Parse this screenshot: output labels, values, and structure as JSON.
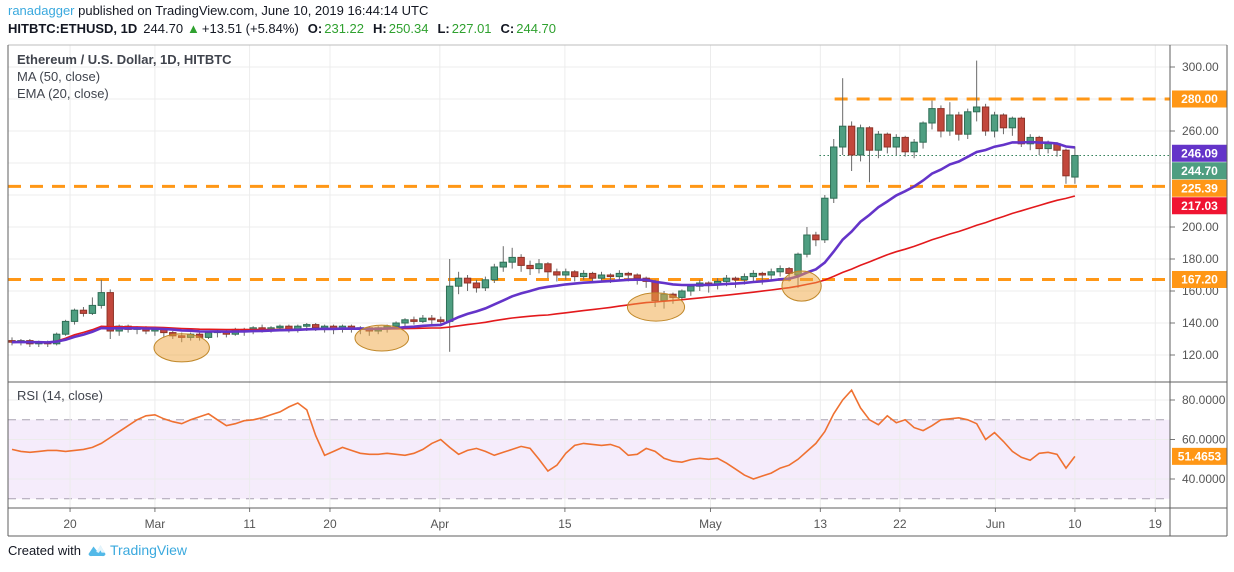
{
  "header": {
    "author": "ranadagger",
    "published": " published on TradingView.com, June 10, 2019 16:44:14 UTC",
    "symbol": "HITBTC:ETHUSD, 1D",
    "last_price": "244.70",
    "up_arrow": "▲",
    "change": "+13.51 (+5.84%)",
    "o_label": "O:",
    "o_value": "231.22",
    "h_label": "H:",
    "h_value": "250.34",
    "l_label": "L:",
    "l_value": "227.01",
    "c_label": "C:",
    "c_value": "244.70"
  },
  "legend": {
    "title": "Ethereum / U.S. Dollar, 1D, HITBTC",
    "ma": "MA (50, close)",
    "ema": "EMA (20, close)"
  },
  "rsi_label": "RSI (14, close)",
  "footer": {
    "created_with": "Created with",
    "brand": "TradingView"
  },
  "colors": {
    "up": "#4e9e81",
    "up_border": "#2e6e55",
    "down": "#c2473c",
    "down_border": "#8e3327",
    "wick": "#6a6a6a",
    "ema": "#6434c9",
    "ma": "#e3191c",
    "levels": "#ff9716",
    "price_line": "#2e7d57",
    "rsi": "#ef7131",
    "rsi_band": "#f5ecfb",
    "rsi_band_edge": "#a9a2b2",
    "badge_purple": "#6434c9",
    "badge_green": "#4e9e81",
    "badge_orange": "#ff9716",
    "badge_red": "#f01432",
    "grid": "#ececec",
    "frame": "#5f5f5f",
    "frame_light": "#bdbdbd",
    "axis_text": "#555555",
    "ellipse_fill": "#f0a63f",
    "ellipse_stroke": "#c0882a"
  },
  "chart_data": {
    "type": "candlestick",
    "title": "Ethereum / U.S. Dollar, 1D, HITBTC",
    "overlays": [
      {
        "name": "MA (50, close)",
        "type": "sma",
        "period": 50
      },
      {
        "name": "EMA (20, close)",
        "type": "ema",
        "period": 20
      }
    ],
    "candles": [
      [
        129,
        131,
        126,
        128
      ],
      [
        128,
        130,
        126,
        129
      ],
      [
        129,
        130,
        125,
        127
      ],
      [
        127,
        129,
        125,
        128
      ],
      [
        128,
        129,
        125,
        127
      ],
      [
        127,
        134,
        126,
        133
      ],
      [
        133,
        142,
        132,
        141
      ],
      [
        141,
        149,
        139,
        148
      ],
      [
        148,
        150,
        144,
        146
      ],
      [
        146,
        156,
        145,
        151
      ],
      [
        151,
        167,
        149,
        159
      ],
      [
        159,
        161,
        130,
        135
      ],
      [
        135,
        139,
        132,
        138
      ],
      [
        138,
        139,
        134,
        136
      ],
      [
        136,
        138,
        133,
        137
      ],
      [
        137,
        138,
        133,
        135
      ],
      [
        135,
        137,
        132,
        136
      ],
      [
        136,
        137,
        131,
        134
      ],
      [
        134,
        135,
        130,
        132
      ],
      [
        132,
        134,
        128,
        131
      ],
      [
        131,
        134,
        129,
        133
      ],
      [
        133,
        134,
        129,
        131
      ],
      [
        131,
        135,
        130,
        134
      ],
      [
        134,
        136,
        131,
        135
      ],
      [
        135,
        136,
        131,
        133
      ],
      [
        133,
        137,
        132,
        136
      ],
      [
        136,
        137,
        132,
        135
      ],
      [
        135,
        138,
        133,
        137
      ],
      [
        137,
        139,
        134,
        136
      ],
      [
        136,
        138,
        134,
        137
      ],
      [
        137,
        139,
        135,
        138
      ],
      [
        138,
        139,
        134,
        136
      ],
      [
        136,
        139,
        134,
        138
      ],
      [
        138,
        140,
        135,
        139
      ],
      [
        139,
        140,
        135,
        137
      ],
      [
        137,
        139,
        134,
        138
      ],
      [
        138,
        139,
        133,
        136
      ],
      [
        136,
        139,
        134,
        138
      ],
      [
        138,
        139,
        134,
        136
      ],
      [
        136,
        138,
        133,
        137
      ],
      [
        137,
        138,
        132,
        135
      ],
      [
        135,
        138,
        133,
        137
      ],
      [
        137,
        139,
        134,
        138
      ],
      [
        138,
        141,
        136,
        140
      ],
      [
        140,
        143,
        138,
        142
      ],
      [
        142,
        144,
        139,
        141
      ],
      [
        141,
        145,
        140,
        143
      ],
      [
        143,
        145,
        139,
        142
      ],
      [
        142,
        144,
        138,
        141
      ],
      [
        141,
        180,
        122,
        163
      ],
      [
        163,
        172,
        158,
        168
      ],
      [
        168,
        170,
        160,
        165
      ],
      [
        165,
        167,
        159,
        162
      ],
      [
        162,
        169,
        160,
        167
      ],
      [
        167,
        177,
        165,
        175
      ],
      [
        175,
        188,
        172,
        178
      ],
      [
        178,
        187,
        174,
        181
      ],
      [
        181,
        183,
        172,
        176
      ],
      [
        176,
        179,
        170,
        174
      ],
      [
        174,
        180,
        171,
        177
      ],
      [
        177,
        178,
        168,
        172
      ],
      [
        172,
        174,
        166,
        170
      ],
      [
        170,
        174,
        167,
        172
      ],
      [
        172,
        173,
        166,
        169
      ],
      [
        169,
        173,
        167,
        171
      ],
      [
        171,
        172,
        165,
        168
      ],
      [
        168,
        172,
        166,
        170
      ],
      [
        170,
        171,
        165,
        169
      ],
      [
        169,
        173,
        167,
        171
      ],
      [
        171,
        172,
        166,
        170
      ],
      [
        170,
        171,
        164,
        168
      ],
      [
        168,
        169,
        162,
        166
      ],
      [
        166,
        167,
        150,
        154
      ],
      [
        154,
        160,
        149,
        158
      ],
      [
        158,
        159,
        152,
        156
      ],
      [
        156,
        161,
        154,
        160
      ],
      [
        160,
        164,
        157,
        163
      ],
      [
        163,
        167,
        160,
        165
      ],
      [
        165,
        166,
        159,
        164
      ],
      [
        164,
        168,
        161,
        166
      ],
      [
        166,
        170,
        163,
        168
      ],
      [
        168,
        169,
        162,
        167
      ],
      [
        167,
        171,
        164,
        169
      ],
      [
        169,
        173,
        166,
        171
      ],
      [
        171,
        172,
        164,
        170
      ],
      [
        170,
        174,
        167,
        172
      ],
      [
        172,
        176,
        169,
        174
      ],
      [
        174,
        175,
        166,
        171
      ],
      [
        170,
        184,
        162,
        183
      ],
      [
        183,
        200,
        181,
        195
      ],
      [
        195,
        197,
        188,
        192
      ],
      [
        192,
        220,
        190,
        218
      ],
      [
        218,
        255,
        215,
        250
      ],
      [
        250,
        293,
        245,
        263
      ],
      [
        263,
        266,
        235,
        245
      ],
      [
        245,
        264,
        241,
        262
      ],
      [
        262,
        263,
        228,
        248
      ],
      [
        248,
        260,
        243,
        258
      ],
      [
        258,
        259,
        246,
        250
      ],
      [
        250,
        258,
        245,
        256
      ],
      [
        256,
        257,
        244,
        247
      ],
      [
        247,
        255,
        243,
        253
      ],
      [
        253,
        266,
        249,
        265
      ],
      [
        265,
        279,
        261,
        274
      ],
      [
        274,
        276,
        256,
        260
      ],
      [
        260,
        278,
        257,
        270
      ],
      [
        270,
        272,
        254,
        258
      ],
      [
        258,
        274,
        255,
        272
      ],
      [
        272,
        304,
        266,
        275
      ],
      [
        275,
        277,
        257,
        260
      ],
      [
        260,
        272,
        256,
        270
      ],
      [
        270,
        271,
        258,
        262
      ],
      [
        262,
        269,
        257,
        268
      ],
      [
        268,
        269,
        250,
        252
      ],
      [
        252,
        258,
        248,
        256
      ],
      [
        256,
        257,
        245,
        249
      ],
      [
        249,
        254,
        246,
        252
      ],
      [
        252,
        253,
        244,
        248
      ],
      [
        248,
        249,
        227,
        232
      ],
      [
        231.22,
        250.34,
        227.01,
        244.7
      ]
    ],
    "price_axis": {
      "ticks": [
        300,
        260,
        200,
        180,
        160,
        140,
        120
      ],
      "ylim": [
        103,
        314
      ],
      "badges": [
        {
          "label": "280.00",
          "price": 280.0,
          "bg": "#ff9716"
        },
        {
          "label": "246.09",
          "price": 246.09,
          "bg": "#6434c9"
        },
        {
          "label": "244.70",
          "price": 244.7,
          "bg": "#4e9e81"
        },
        {
          "label": "225.39",
          "price": 225.39,
          "bg": "#ff9716"
        },
        {
          "label": "217.03",
          "price": 217.03,
          "bg": "#f01432"
        },
        {
          "label": "167.20",
          "price": 167.2,
          "bg": "#ff9716"
        }
      ]
    },
    "gridlines": {
      "price_step": 20,
      "price_min": 120,
      "price_max": 300
    },
    "time_axis": [
      {
        "label": "20",
        "bar": 6.5
      },
      {
        "label": "Mar",
        "bar": 16
      },
      {
        "label": "11",
        "bar": 26.6
      },
      {
        "label": "20",
        "bar": 35.6
      },
      {
        "label": "Apr",
        "bar": 47.9
      },
      {
        "label": "15",
        "bar": 61.9
      },
      {
        "label": "May",
        "bar": 78.2
      },
      {
        "label": "13",
        "bar": 90.5
      },
      {
        "label": "22",
        "bar": 99.4
      },
      {
        "label": "Jun",
        "bar": 110.1
      },
      {
        "label": "10",
        "bar": 119
      },
      {
        "label": "19",
        "bar": 128
      }
    ],
    "h_lines": [
      {
        "label": "280.00",
        "price": 280.0,
        "from_bar": 92.1
      },
      {
        "label": "225.39",
        "price": 225.39,
        "from_bar": null
      },
      {
        "label": "167.20",
        "price": 167.2,
        "from_bar": null
      }
    ],
    "price_line": {
      "price": 244.7,
      "from_bar": 90.4
    },
    "ellipses": [
      {
        "bar": 19.0,
        "price": 124.5,
        "bar_radius": 3.1,
        "price_radius": 8.8
      },
      {
        "bar": 41.4,
        "price": 130.6,
        "bar_radius": 3.0,
        "price_radius": 8.1
      },
      {
        "bar": 72.1,
        "price": 150.0,
        "bar_radius": 3.2,
        "price_radius": 8.8
      },
      {
        "bar": 88.4,
        "price": 163.1,
        "bar_radius": 2.2,
        "price_radius": 9.4
      }
    ],
    "rsi": {
      "name": "RSI (14, close)",
      "band": [
        30,
        70
      ],
      "ticks": [
        80,
        60,
        40
      ],
      "badge": "51.4653",
      "badge_value": 51.4653,
      "values": [
        55,
        54,
        53.5,
        54,
        54.5,
        54.5,
        54,
        54.5,
        55,
        56,
        58,
        61,
        64,
        67,
        70,
        72,
        72.5,
        70.5,
        69,
        68,
        70,
        71.5,
        73,
        70,
        67,
        68,
        69.5,
        70,
        71,
        72.5,
        74,
        76.5,
        78.5,
        75,
        62,
        52,
        54,
        56,
        54.5,
        53,
        52.5,
        52.5,
        53,
        52.5,
        52,
        53,
        55,
        58,
        60,
        56,
        52.5,
        54.5,
        55.5,
        54,
        52,
        53.5,
        55,
        56.5,
        55.5,
        50,
        44,
        47,
        53,
        57,
        58,
        57.5,
        57,
        57.5,
        56,
        52,
        52.5,
        55.5,
        54,
        50.5,
        49,
        48.5,
        49.8,
        50.5,
        50,
        50.5,
        48,
        45,
        42,
        40,
        41.5,
        43,
        45.5,
        47,
        50,
        54,
        58,
        64,
        73,
        80,
        85,
        76,
        70,
        67.5,
        72,
        68.5,
        70,
        66,
        64.5,
        67,
        70,
        70.5,
        71,
        70,
        68,
        60,
        63.5,
        59,
        54,
        51,
        49.5,
        53,
        53.5,
        52.5,
        45.5,
        51.4653
      ]
    }
  }
}
